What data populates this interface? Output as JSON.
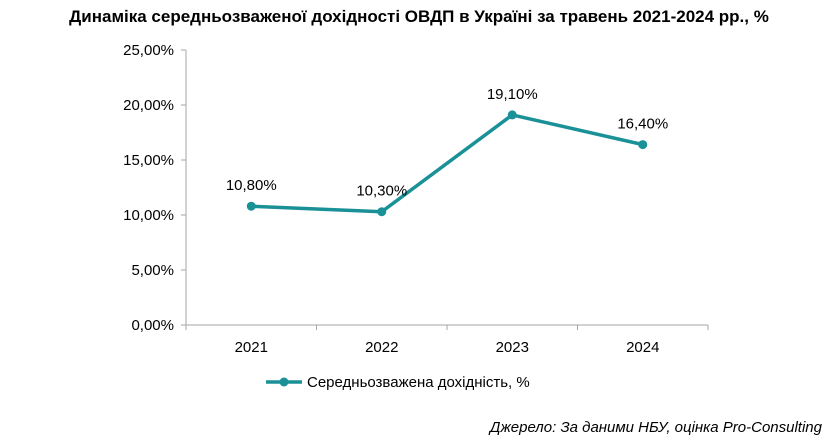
{
  "title": "Динаміка середньозваженої дохідності ОВДП в Україні за травень 2021-2024 рр., %",
  "source": "Джерело: За даними НБУ, оцінка Pro-Consulting",
  "chart_data": {
    "type": "line",
    "title": "Динаміка середньозваженої дохідності ОВДП в Україні за травень 2021-2024 рр., %",
    "categories": [
      "2021",
      "2022",
      "2023",
      "2024"
    ],
    "series": [
      {
        "name": "Середньозважена дохідність, %",
        "values": [
          10.8,
          10.3,
          19.1,
          16.4
        ],
        "labels": [
          "10,80%",
          "10,30%",
          "19,10%",
          "16,40%"
        ],
        "color": "#1a9197"
      }
    ],
    "ylim": [
      0,
      25
    ],
    "yticks": [
      "0,00%",
      "5,00%",
      "10,00%",
      "15,00%",
      "20,00%",
      "25,00%"
    ],
    "grid": false,
    "legend_position": "bottom"
  }
}
